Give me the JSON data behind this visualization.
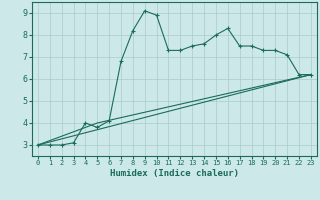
{
  "xlabel": "Humidex (Indice chaleur)",
  "xlim": [
    -0.5,
    23.5
  ],
  "ylim": [
    2.5,
    9.5
  ],
  "xticks": [
    0,
    1,
    2,
    3,
    4,
    5,
    6,
    7,
    8,
    9,
    10,
    11,
    12,
    13,
    14,
    15,
    16,
    17,
    18,
    19,
    20,
    21,
    22,
    23
  ],
  "yticks": [
    3,
    4,
    5,
    6,
    7,
    8,
    9
  ],
  "bg_color": "#cce8e8",
  "line_color": "#1a6b5a",
  "grid_color": "#aacccc",
  "line1_x": [
    0,
    1,
    2,
    3,
    4,
    5,
    6,
    7,
    8,
    9,
    10,
    11,
    12,
    13,
    14,
    15,
    16,
    17,
    18,
    19,
    20,
    21,
    22,
    23
  ],
  "line1_y": [
    3.0,
    3.0,
    3.0,
    3.1,
    4.0,
    3.8,
    4.1,
    6.8,
    8.2,
    9.1,
    8.9,
    7.3,
    7.3,
    7.5,
    7.6,
    8.0,
    8.3,
    7.5,
    7.5,
    7.3,
    7.3,
    7.1,
    6.2,
    6.2
  ],
  "line2_x": [
    0,
    23
  ],
  "line2_y": [
    3.0,
    6.2
  ],
  "line3_x": [
    0,
    5,
    23
  ],
  "line3_y": [
    3.0,
    4.0,
    6.2
  ]
}
